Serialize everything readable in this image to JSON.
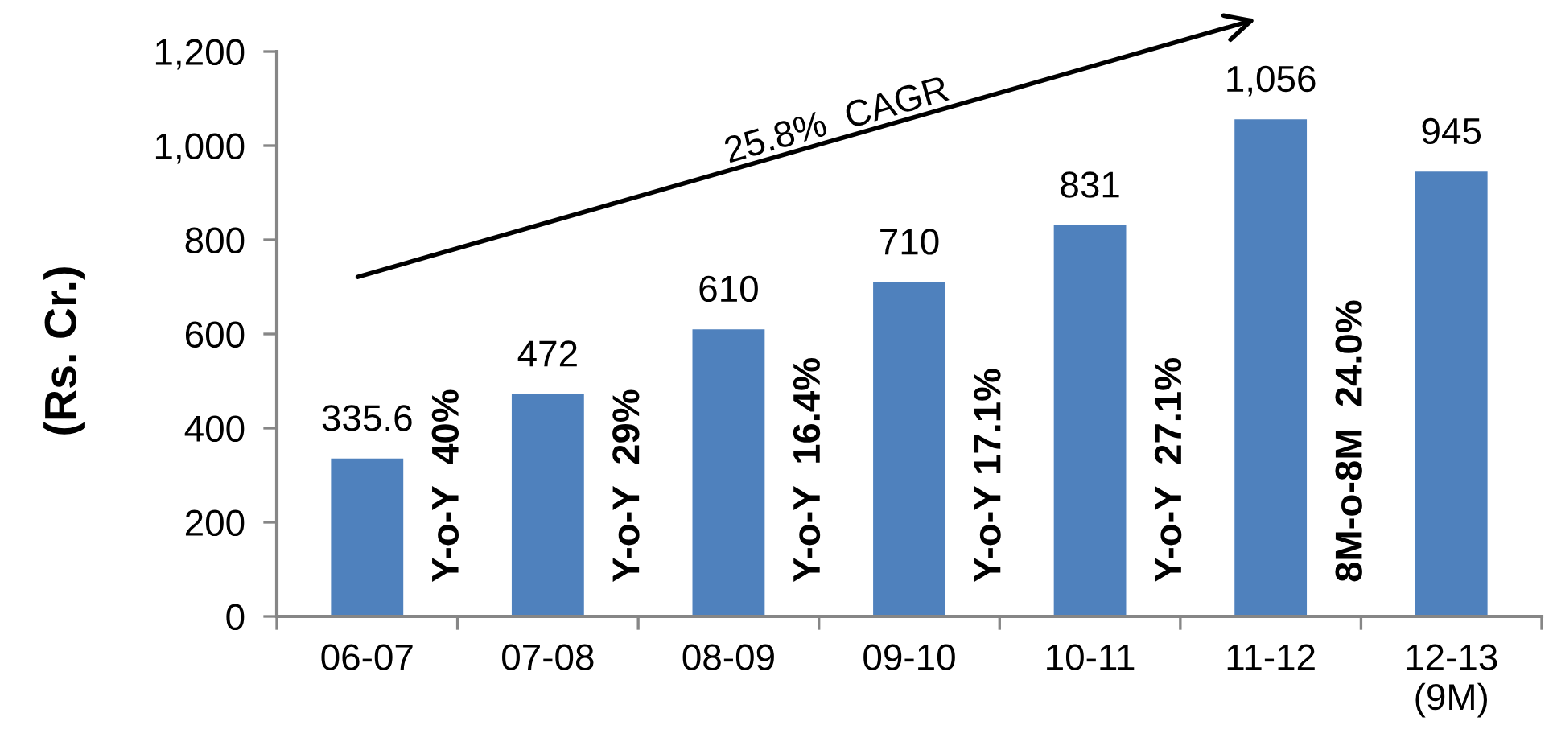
{
  "chart_data": {
    "type": "bar",
    "categories": [
      "06-07",
      "07-08",
      "08-09",
      "09-10",
      "10-11",
      "11-12",
      "12-13\n(9M)"
    ],
    "values": [
      335.6,
      472,
      610,
      710,
      831,
      1056,
      945
    ],
    "color": "#4f81bd",
    "value_labels": [
      "335.6",
      "472",
      "610",
      "710",
      "831",
      "1,056",
      "945"
    ],
    "ylabel": "(Rs. Cr.)",
    "ylim": [
      0,
      1200
    ],
    "yticks": [
      0,
      200,
      400,
      600,
      800,
      {
        "value": 1000,
        "label": "1,000"
      },
      {
        "value": 1200,
        "label": "1,200"
      }
    ],
    "grid": false,
    "annotations": [
      "Y-o-Y  40%",
      "Y-o-Y  29%",
      "Y-o-Y  16.4%",
      "Y-o-Y 17.1%",
      "Y-o-Y  27.1%",
      "8M-o-8M  24.0%",
      "25.8%  CAGR"
    ]
  }
}
